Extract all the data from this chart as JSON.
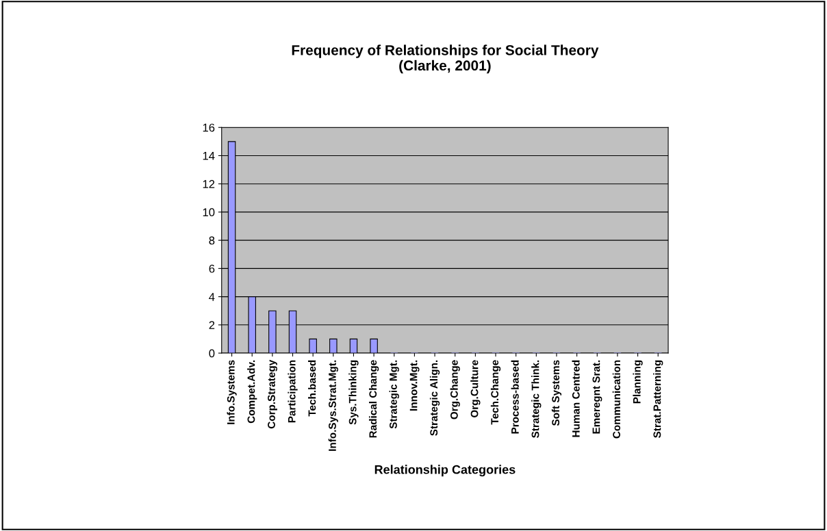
{
  "chart_data": {
    "type": "bar",
    "title": "Frequency of Relationships for Social Theory\n(Clarke, 2001)",
    "xlabel": "Relationship Categories",
    "categories": [
      "Info.Systems",
      "Compet.Adv.",
      "Corp.Strategy",
      "Participation",
      "Tech.based",
      "Info.Sys.Strat.Mgt.",
      "Sys.Thinking",
      "Radical Change",
      "Strategic Mgt.",
      "Innov.Mgt.",
      "Strategic Align.",
      "Org.Change",
      "Org.Culture",
      "Tech.Change",
      "Process-based",
      "Strategic Think.",
      "Soft Systems",
      "Human Centred",
      "Emeregnt Srat.",
      "Communication",
      "Planning",
      "Strat.Patterning"
    ],
    "values": [
      15,
      4,
      3,
      3,
      1,
      1,
      1,
      1,
      0,
      0,
      0,
      0,
      0,
      0,
      0,
      0,
      0,
      0,
      0,
      0,
      0,
      0
    ],
    "color": "#9999ff",
    "ylim": [
      0,
      16
    ],
    "yticks": [
      0,
      2,
      4,
      6,
      8,
      10,
      12,
      14,
      16
    ],
    "grid": "y"
  }
}
